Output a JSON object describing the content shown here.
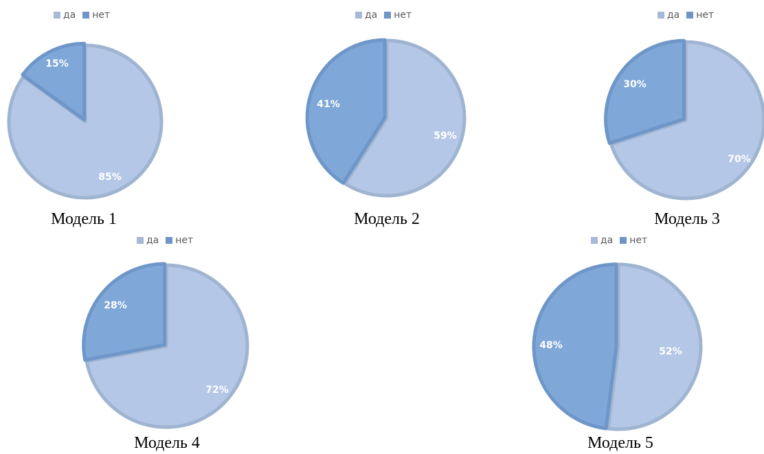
{
  "colors": {
    "da": "#b4c7e7",
    "net": "#7fa7d7",
    "da_stroke": "#9fb4d0",
    "net_stroke": "#6e96c8",
    "legend_da": "#a5b9d8",
    "legend_net": "#6f95c6"
  },
  "chart_data": [
    {
      "type": "pie",
      "caption": "Модель 1",
      "legend": [
        "да",
        "нет"
      ],
      "slices": [
        {
          "name": "да",
          "value": 85,
          "label": "85%"
        },
        {
          "name": "нет",
          "value": 15,
          "label": "15%"
        }
      ]
    },
    {
      "type": "pie",
      "caption": "Модель 2",
      "legend": [
        "да",
        "нет"
      ],
      "slices": [
        {
          "name": "да",
          "value": 59,
          "label": "59%"
        },
        {
          "name": "нет",
          "value": 41,
          "label": "41%"
        }
      ]
    },
    {
      "type": "pie",
      "caption": "Модель 3",
      "legend": [
        "да",
        "нет"
      ],
      "slices": [
        {
          "name": "да",
          "value": 70,
          "label": "70%"
        },
        {
          "name": "нет",
          "value": 30,
          "label": "30%"
        }
      ]
    },
    {
      "type": "pie",
      "caption": "Модель 4",
      "legend": [
        "да",
        "нет"
      ],
      "slices": [
        {
          "name": "да",
          "value": 72,
          "label": "72%"
        },
        {
          "name": "нет",
          "value": 28,
          "label": "28%"
        }
      ]
    },
    {
      "type": "pie",
      "caption": "Модель 5",
      "legend": [
        "да",
        "нет"
      ],
      "slices": [
        {
          "name": "да",
          "value": 52,
          "label": "52%"
        },
        {
          "name": "нет",
          "value": 48,
          "label": "48%"
        }
      ]
    }
  ]
}
